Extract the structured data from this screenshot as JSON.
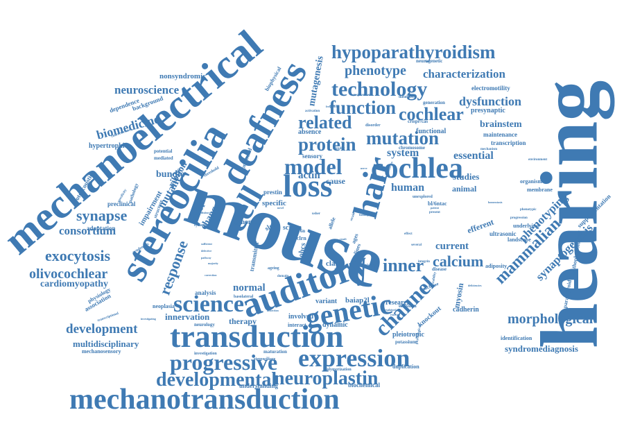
{
  "colors": {
    "word": "#3f7ab3",
    "word_light": "#5b8fc4",
    "background": "#ffffff"
  },
  "words": [
    {
      "id": "hearing",
      "text": "hearing",
      "weight": 100,
      "rot": -90
    },
    {
      "id": "mouse",
      "text": "mouse",
      "weight": 92,
      "rot": 20
    },
    {
      "id": "mechanoelectrical",
      "text": "mechanoelectrical",
      "weight": 70,
      "rot": -40
    },
    {
      "id": "stereocilia",
      "text": "stereocilia",
      "weight": 64,
      "rot": -60
    },
    {
      "id": "deafness",
      "text": "deafness",
      "weight": 60,
      "rot": -60
    },
    {
      "id": "auditory",
      "text": "auditory",
      "weight": 56,
      "rot": -20
    },
    {
      "id": "transduction",
      "text": "transduction",
      "weight": 54,
      "rot": 0
    },
    {
      "id": "mechanotransduction",
      "text": "mechanotransduction",
      "weight": 50,
      "rot": 0
    },
    {
      "id": "hair",
      "text": "hair",
      "weight": 50,
      "rot": -75
    },
    {
      "id": "cell",
      "text": "cell",
      "weight": 48,
      "rot": -60
    },
    {
      "id": "loss",
      "text": "loss",
      "weight": 46,
      "rot": 0
    },
    {
      "id": "genetic",
      "text": "genetic",
      "weight": 44,
      "rot": -10
    },
    {
      "id": "cochlea",
      "text": "cochlea",
      "weight": 42,
      "rot": 0
    },
    {
      "id": "science",
      "text": "science",
      "weight": 40,
      "rot": 0
    },
    {
      "id": "expression",
      "text": "expression",
      "weight": 40,
      "rot": 0
    },
    {
      "id": "progressive",
      "text": "progressive",
      "weight": 38,
      "rot": 0
    },
    {
      "id": "model",
      "text": "model",
      "weight": 38,
      "rot": 0
    },
    {
      "id": "technology",
      "text": "technology",
      "weight": 36,
      "rot": 0
    },
    {
      "id": "hypoparathyroidism",
      "text": "hypoparathyroidism",
      "weight": 34,
      "rot": 0
    },
    {
      "id": "channel",
      "text": "channel",
      "weight": 34,
      "rot": -45
    },
    {
      "id": "developmental",
      "text": "developmental",
      "weight": 32,
      "rot": 0
    },
    {
      "id": "neuroplastin",
      "text": "neuroplastin",
      "weight": 32,
      "rot": 0
    },
    {
      "id": "function",
      "text": "function",
      "weight": 30,
      "rot": 0
    },
    {
      "id": "protein",
      "text": "protein",
      "weight": 30,
      "rot": 0
    },
    {
      "id": "mutation",
      "text": "mutation",
      "weight": 30,
      "rot": 0
    },
    {
      "id": "related",
      "text": "related",
      "weight": 28,
      "rot": 0
    },
    {
      "id": "cochlear",
      "text": "cochlear",
      "weight": 28,
      "rot": 0
    },
    {
      "id": "inner",
      "text": "inner",
      "weight": 28,
      "rot": 0
    },
    {
      "id": "mammalian",
      "text": "mammalian",
      "weight": 28,
      "rot": -45
    },
    {
      "id": "exocytosis",
      "text": "exocytosis",
      "weight": 26,
      "rot": 0
    },
    {
      "id": "synapse",
      "text": "synapse",
      "weight": 26,
      "rot": 0
    },
    {
      "id": "response",
      "text": "response",
      "weight": 24,
      "rot": -70
    },
    {
      "id": "calcium",
      "text": "calcium",
      "weight": 24,
      "rot": 0
    },
    {
      "id": "development",
      "text": "development",
      "weight": 22,
      "rot": 0
    },
    {
      "id": "olivocochlear",
      "text": "olivocochlear",
      "weight": 22,
      "rot": 0
    },
    {
      "id": "morphological",
      "text": "morphological",
      "weight": 22,
      "rot": 0
    },
    {
      "id": "phenotype",
      "text": "phenotype",
      "weight": 22,
      "rot": 0
    },
    {
      "id": "characterization",
      "text": "characterization",
      "weight": 20,
      "rot": 0
    },
    {
      "id": "dysfunction",
      "text": "dysfunction",
      "weight": 20,
      "rot": 0
    },
    {
      "id": "biomedicine",
      "text": "biomedicine",
      "weight": 20,
      "rot": 0
    },
    {
      "id": "neuroscience",
      "text": "neuroscience",
      "weight": 20,
      "rot": 0
    },
    {
      "id": "mutagenesis",
      "text": "mutagenesis",
      "weight": 16,
      "rot": -80
    },
    {
      "id": "synaptogenesis",
      "text": "synaptogenesis",
      "weight": 18,
      "rot": -45
    },
    {
      "id": "phenotyping",
      "text": "phenotyping",
      "weight": 18,
      "rot": -45
    },
    {
      "id": "consortium",
      "text": "consortium",
      "weight": 18,
      "rot": 0
    },
    {
      "id": "essential",
      "text": "essential",
      "weight": 18,
      "rot": 0
    },
    {
      "id": "system",
      "text": "system",
      "weight": 18,
      "rot": 0
    },
    {
      "id": "human",
      "text": "human",
      "weight": 18,
      "rot": 0
    },
    {
      "id": "brainstem",
      "text": "brainstem",
      "weight": 16,
      "rot": 0
    },
    {
      "id": "cardiomyopathy",
      "text": "cardiomyopathy",
      "weight": 16,
      "rot": 0
    },
    {
      "id": "multidisciplinary",
      "text": "multidisciplinary",
      "weight": 16,
      "rot": 0
    },
    {
      "id": "syndromediagnosis",
      "text": "syndromediagnosis",
      "weight": 16,
      "rot": 0
    },
    {
      "id": "mutant",
      "text": "mutant",
      "weight": 16,
      "rot": -60
    },
    {
      "id": "ribbon",
      "text": "ribbon",
      "weight": 14,
      "rot": -60
    },
    {
      "id": "bundle",
      "text": "bundle",
      "weight": 14,
      "rot": 0
    },
    {
      "id": "change",
      "text": "change",
      "weight": 14,
      "rot": -60
    },
    {
      "id": "factor",
      "text": "factor",
      "weight": 14,
      "rot": -60
    },
    {
      "id": "normal",
      "text": "normal",
      "weight": 16,
      "rot": 0
    },
    {
      "id": "actin",
      "text": "actin",
      "weight": 16,
      "rot": 0
    },
    {
      "id": "cause",
      "text": "cause",
      "weight": 14,
      "rot": 0
    },
    {
      "id": "specific",
      "text": "specific",
      "weight": 12,
      "rot": 0
    },
    {
      "id": "current",
      "text": "current",
      "weight": 16,
      "rot": 0
    },
    {
      "id": "studies",
      "text": "studies",
      "weight": 14,
      "rot": 0
    },
    {
      "id": "animal",
      "text": "animal",
      "weight": 13,
      "rot": 0
    },
    {
      "id": "efferent",
      "text": "efferent",
      "weight": 14,
      "rot": -20
    },
    {
      "id": "innervation",
      "text": "innervation",
      "weight": 14,
      "rot": 0
    },
    {
      "id": "therapy",
      "text": "therapy",
      "weight": 14,
      "rot": 0
    },
    {
      "id": "myosin",
      "text": "myosin",
      "weight": 14,
      "rot": -80
    },
    {
      "id": "ohcs",
      "text": "ohcs",
      "weight": 12,
      "rot": -80
    },
    {
      "id": "clarin",
      "text": "clarin",
      "weight": 12,
      "rot": 0
    },
    {
      "id": "baiap2l",
      "text": "baiap2l",
      "weight": 12,
      "rot": 0
    },
    {
      "id": "research",
      "text": "research",
      "weight": 12,
      "rot": 0
    },
    {
      "id": "variant",
      "text": "variant",
      "weight": 11,
      "rot": 0
    },
    {
      "id": "cadherin",
      "text": "cadherin",
      "weight": 11,
      "rot": 0
    },
    {
      "id": "pleiotropic",
      "text": "pleiotropic",
      "weight": 11,
      "rot": 0
    },
    {
      "id": "knockout",
      "text": "knockout",
      "weight": 11,
      "rot": -40
    },
    {
      "id": "dynamic",
      "text": "dynamic",
      "weight": 11,
      "rot": 0
    },
    {
      "id": "involved",
      "text": "involved",
      "weight": 11,
      "rot": 0
    },
    {
      "id": "interact",
      "text": "interact",
      "weight": 9,
      "rot": 0
    },
    {
      "id": "transmitter",
      "text": "transmitter",
      "weight": 10,
      "rot": -80
    },
    {
      "id": "genome",
      "text": "genome",
      "weight": 11,
      "rot": 0
    },
    {
      "id": "screen",
      "text": "screen",
      "weight": 11,
      "rot": 0
    },
    {
      "id": "sleep",
      "text": "sleep",
      "weight": 11,
      "rot": -30
    },
    {
      "id": "absence",
      "text": "absence",
      "weight": 11,
      "rot": 0
    },
    {
      "id": "sensory",
      "text": "sensory",
      "weight": 10,
      "rot": 0
    },
    {
      "id": "prestin",
      "text": "prestin",
      "weight": 10,
      "rot": 0
    },
    {
      "id": "nonsyndromic",
      "text": "nonsyndromic",
      "weight": 12,
      "rot": 0
    },
    {
      "id": "hypertrophic",
      "text": "hypertrophic",
      "weight": 11,
      "rot": 0
    },
    {
      "id": "dependence",
      "text": "dependence",
      "weight": 10,
      "rot": -20
    },
    {
      "id": "background",
      "text": "background",
      "weight": 10,
      "rot": -20
    },
    {
      "id": "otoacoustic",
      "text": "otoacoustic",
      "weight": 10,
      "rot": -60
    },
    {
      "id": "impairment",
      "text": "impairment",
      "weight": 12,
      "rot": -60
    },
    {
      "id": "adaptation",
      "text": "adaptation",
      "weight": 10,
      "rot": 0
    },
    {
      "id": "preclinical",
      "text": "preclinical",
      "weight": 10,
      "rot": 0
    },
    {
      "id": "association",
      "text": "association",
      "weight": 10,
      "rot": -30
    },
    {
      "id": "physiology",
      "text": "physiology",
      "weight": 9,
      "rot": -30
    },
    {
      "id": "neoplasia",
      "text": "neoplasia",
      "weight": 9,
      "rot": 0
    },
    {
      "id": "analysis",
      "text": "analysis",
      "weight": 10,
      "rot": 0
    },
    {
      "id": "neurology",
      "text": "neurology",
      "weight": 8,
      "rot": 0
    },
    {
      "id": "mechanosensory",
      "text": "mechanosensory",
      "weight": 9,
      "rot": 0
    },
    {
      "id": "understanding",
      "text": "understanding",
      "weight": 10,
      "rot": 0
    },
    {
      "id": "biochemical",
      "text": "biochemical",
      "weight": 10,
      "rot": 0
    },
    {
      "id": "duplication",
      "text": "duplication",
      "weight": 9,
      "rot": 0
    },
    {
      "id": "identification",
      "text": "identification",
      "weight": 9,
      "rot": 0
    },
    {
      "id": "adiposity",
      "text": "adiposity",
      "weight": 9,
      "rot": 0
    },
    {
      "id": "landscape",
      "text": "landscape",
      "weight": 9,
      "rot": 0
    },
    {
      "id": "underlying",
      "text": "underlying",
      "weight": 9,
      "rot": 0
    },
    {
      "id": "ultrasonic",
      "text": "ultrasonic",
      "weight": 10,
      "rot": 0
    },
    {
      "id": "organism",
      "text": "organism",
      "weight": 9,
      "rot": 0
    },
    {
      "id": "membrane",
      "text": "membrane",
      "weight": 9,
      "rot": 0
    },
    {
      "id": "supplementation",
      "text": "supplementation",
      "weight": 10,
      "rot": -45
    },
    {
      "id": "pathophysiological",
      "text": "pathophysiological",
      "weight": 9,
      "rot": -80
    },
    {
      "id": "parathyroid",
      "text": "parathyroid",
      "weight": 9,
      "rot": -80
    },
    {
      "id": "maintenance",
      "text": "maintenance",
      "weight": 10,
      "rot": 0
    },
    {
      "id": "transcription",
      "text": "transcription",
      "weight": 10,
      "rot": 0
    },
    {
      "id": "electromotility",
      "text": "electromotility",
      "weight": 10,
      "rot": 0
    },
    {
      "id": "presynaptic",
      "text": "presynaptic",
      "weight": 11,
      "rot": 0
    },
    {
      "id": "generation",
      "text": "generation",
      "weight": 9,
      "rot": 0
    },
    {
      "id": "functional",
      "text": "functional",
      "weight": 11,
      "rot": 0
    },
    {
      "id": "chromosome",
      "text": "chromosome",
      "weight": 9,
      "rot": 0
    },
    {
      "id": "crispr-cas",
      "text": "crispr/cas",
      "weight": 8,
      "rot": 0
    },
    {
      "id": "neurogenetic",
      "text": "neurogenetic",
      "weight": 8,
      "rot": 0
    },
    {
      "id": "biophysical",
      "text": "biophysical",
      "weight": 9,
      "rot": -60
    },
    {
      "id": "profound",
      "text": "profound",
      "weight": 9,
      "rot": -70
    },
    {
      "id": "potential",
      "text": "potential",
      "weight": 8,
      "rot": 0
    },
    {
      "id": "mediated",
      "text": "mediated",
      "weight": 8,
      "rot": 0
    },
    {
      "id": "pathology",
      "text": "pathology",
      "weight": 8,
      "rot": -70
    },
    {
      "id": "structure",
      "text": "structure",
      "weight": 8,
      "rot": -70
    },
    {
      "id": "maturation",
      "text": "maturation",
      "weight": 8,
      "rot": 0
    },
    {
      "id": "stereociliary",
      "text": "stereociliary",
      "weight": 7,
      "rot": 0
    },
    {
      "id": "polymerization",
      "text": "polymerization",
      "weight": 7,
      "rot": 0
    },
    {
      "id": "investigation",
      "text": "investigation",
      "weight": 7,
      "rot": 0
    },
    {
      "id": "emission",
      "text": "emission",
      "weight": 8,
      "rot": 0
    },
    {
      "id": "potassium",
      "text": "potassium",
      "weight": 8,
      "rot": 0
    },
    {
      "id": "nuclease",
      "text": "nuclease",
      "weight": 8,
      "rot": -20
    },
    {
      "id": "disease",
      "text": "disease",
      "weight": 8,
      "rot": 0
    },
    {
      "id": "activity",
      "text": "activity",
      "weight": 8,
      "rot": 0
    },
    {
      "id": "allele",
      "text": "allele",
      "weight": 9,
      "rot": -70
    },
    {
      "id": "clrn",
      "text": "clrn",
      "weight": 9,
      "rot": 0
    },
    {
      "id": "bl6n",
      "text": "bl/6n",
      "weight": 8,
      "rot": 0
    },
    {
      "id": "bl6ntac",
      "text": "bl/6ntac",
      "weight": 9,
      "rot": 0
    },
    {
      "id": "ages",
      "text": "ages",
      "weight": 9,
      "rot": -70
    },
    {
      "id": "basolateral",
      "text": "basolateral",
      "weight": 7,
      "rot": 0
    },
    {
      "id": "synaptic",
      "text": "synaptic",
      "weight": 7,
      "rot": 0
    },
    {
      "id": "syndromic",
      "text": "syndromic",
      "weight": 7,
      "rot": -30
    },
    {
      "id": "threshold",
      "text": "threshold",
      "weight": 7,
      "rot": -30
    },
    {
      "id": "ageing",
      "text": "ageing",
      "weight": 7,
      "rot": 0
    },
    {
      "id": "several",
      "text": "several",
      "weight": 6,
      "rot": 0
    },
    {
      "id": "effect",
      "text": "effect",
      "weight": 6,
      "rot": 0
    },
    {
      "id": "integrin",
      "text": "integrin",
      "weight": 6,
      "rot": 0
    },
    {
      "id": "mechanism",
      "text": "mechanism",
      "weight": 6,
      "rot": 0
    },
    {
      "id": "progression",
      "text": "progression",
      "weight": 6,
      "rot": 0
    },
    {
      "id": "phenotypic",
      "text": "phenotypic",
      "weight": 6,
      "rot": 0
    },
    {
      "id": "environment",
      "text": "environment",
      "weight": 6,
      "rot": 0
    },
    {
      "id": "homeostasis",
      "text": "homeostasis",
      "weight": 5,
      "rot": 0
    },
    {
      "id": "deficiencies",
      "text": "deficiencies",
      "weight": 5,
      "rot": 0
    },
    {
      "id": "stability",
      "text": "stability",
      "weight": 6,
      "rot": -80
    },
    {
      "id": "database",
      "text": "database",
      "weight": 7,
      "rot": 0
    },
    {
      "id": "requirement",
      "text": "requirement",
      "weight": 6,
      "rot": 0
    },
    {
      "id": "disorder",
      "text": "disorder",
      "weight": 7,
      "rot": 0
    },
    {
      "id": "activation",
      "text": "activation",
      "weight": 6,
      "rot": 0
    },
    {
      "id": "heredity",
      "text": "heredity",
      "weight": 6,
      "rot": 0
    },
    {
      "id": "unexplored",
      "text": "unexplored",
      "weight": 7,
      "rot": 0
    },
    {
      "id": "patient",
      "text": "patient",
      "weight": 5,
      "rot": 0
    },
    {
      "id": "present",
      "text": "present",
      "weight": 6,
      "rot": 0
    },
    {
      "id": "characteristic",
      "text": "characteristic",
      "weight": 6,
      "rot": -20
    },
    {
      "id": "transcriptional",
      "text": "transcriptional",
      "weight": 6,
      "rot": -20
    },
    {
      "id": "investigating",
      "text": "investigating",
      "weight": 5,
      "rot": 0
    },
    {
      "id": "interaction",
      "text": "interaction",
      "weight": 5,
      "rot": -40
    },
    {
      "id": "specificity",
      "text": "specificity",
      "weight": 6,
      "rot": -60
    },
    {
      "id": "distinct",
      "text": "distinct",
      "weight": 5,
      "rot": 0
    },
    {
      "id": "sufficient",
      "text": "sufficient",
      "weight": 5,
      "rot": 0
    },
    {
      "id": "defective",
      "text": "defective",
      "weight": 5,
      "rot": 0
    },
    {
      "id": "majority",
      "text": "majority",
      "weight": 5,
      "rot": 0
    },
    {
      "id": "correction",
      "text": "correction",
      "weight": 5,
      "rot": 0
    },
    {
      "id": "nerve",
      "text": "nerve",
      "weight": 5,
      "rot": 0
    },
    {
      "id": "novel",
      "text": "novel",
      "weight": 5,
      "rot": 0
    },
    {
      "id": "usher",
      "text": "usher",
      "weight": 6,
      "rot": 0
    },
    {
      "id": "strain",
      "text": "strain",
      "weight": 6,
      "rot": -70
    },
    {
      "id": "lines",
      "text": "lines",
      "weight": 9,
      "rot": -70
    },
    {
      "id": "domain",
      "text": "domain",
      "weight": 6,
      "rot": 0
    },
    {
      "id": "result",
      "text": "result",
      "weight": 5,
      "rot": 0
    },
    {
      "id": "funding",
      "text": "funding",
      "weight": 5,
      "rot": 0
    },
    {
      "id": "frequencies",
      "text": "frequencies",
      "weight": 5,
      "rot": 0
    },
    {
      "id": "cardiolipin",
      "text": "cardiolipin",
      "weight": 5,
      "rot": -70
    },
    {
      "id": "reaction",
      "text": "reaction",
      "weight": 5,
      "rot": 0
    },
    {
      "id": "explained",
      "text": "explained",
      "weight": 5,
      "rot": 0
    },
    {
      "id": "dissection",
      "text": "dissection",
      "weight": 5,
      "rot": 0
    },
    {
      "id": "pathway",
      "text": "pathway",
      "weight": 5,
      "rot": 0
    },
    {
      "id": "physiological",
      "text": "physiological",
      "weight": 6,
      "rot": -80
    }
  ]
}
